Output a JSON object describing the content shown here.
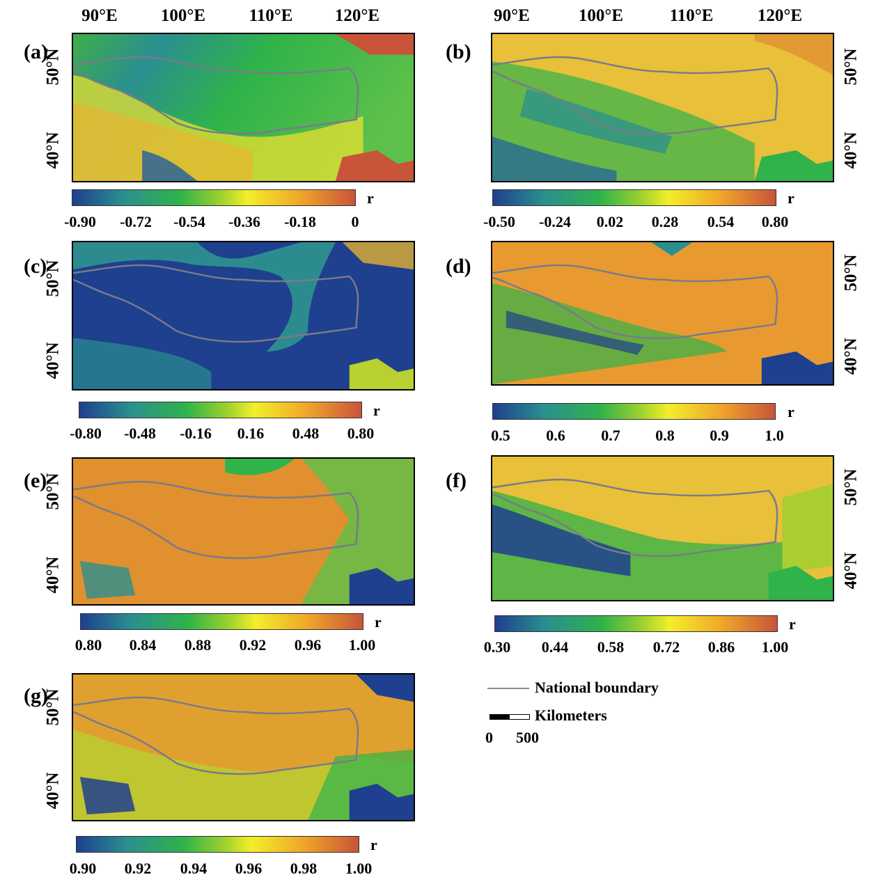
{
  "longitude_labels": [
    "90°E",
    "100°E",
    "110°E",
    "120°E"
  ],
  "latitude_labels": [
    "50°N",
    "40°N"
  ],
  "colorbar_label": "r",
  "panels": [
    {
      "label": "(a)",
      "colorbar_ticks": [
        "-0.90",
        "-0.72",
        "-0.54",
        "-0.36",
        "-0.18",
        "0"
      ]
    },
    {
      "label": "(b)",
      "colorbar_ticks": [
        "-0.50",
        "-0.24",
        "0.02",
        "0.28",
        "0.54",
        "0.80"
      ]
    },
    {
      "label": "(c)",
      "colorbar_ticks": [
        "-0.80",
        "-0.48",
        "-0.16",
        "0.16",
        "0.48",
        "0.80"
      ]
    },
    {
      "label": "(d)",
      "colorbar_ticks": [
        "0.5",
        "0.6",
        "0.7",
        "0.8",
        "0.9",
        "1.0"
      ]
    },
    {
      "label": "(e)",
      "colorbar_ticks": [
        "0.80",
        "0.84",
        "0.88",
        "0.92",
        "0.96",
        "1.00"
      ]
    },
    {
      "label": "(f)",
      "colorbar_ticks": [
        "0.30",
        "0.44",
        "0.58",
        "0.72",
        "0.86",
        "1.00"
      ]
    },
    {
      "label": "(g)",
      "colorbar_ticks": [
        "0.90",
        "0.92",
        "0.94",
        "0.96",
        "0.98",
        "1.00"
      ]
    }
  ],
  "legend": {
    "boundary_label": "National boundary",
    "scale_label": "Kilometers",
    "scale_start": "0",
    "scale_end": "500"
  },
  "colors": {
    "low": "#1f3f8f",
    "mid": "#2fb34a",
    "middle_high": "#f2ee2a",
    "high": "#c8543a",
    "boundary": "#7a7a8a"
  }
}
